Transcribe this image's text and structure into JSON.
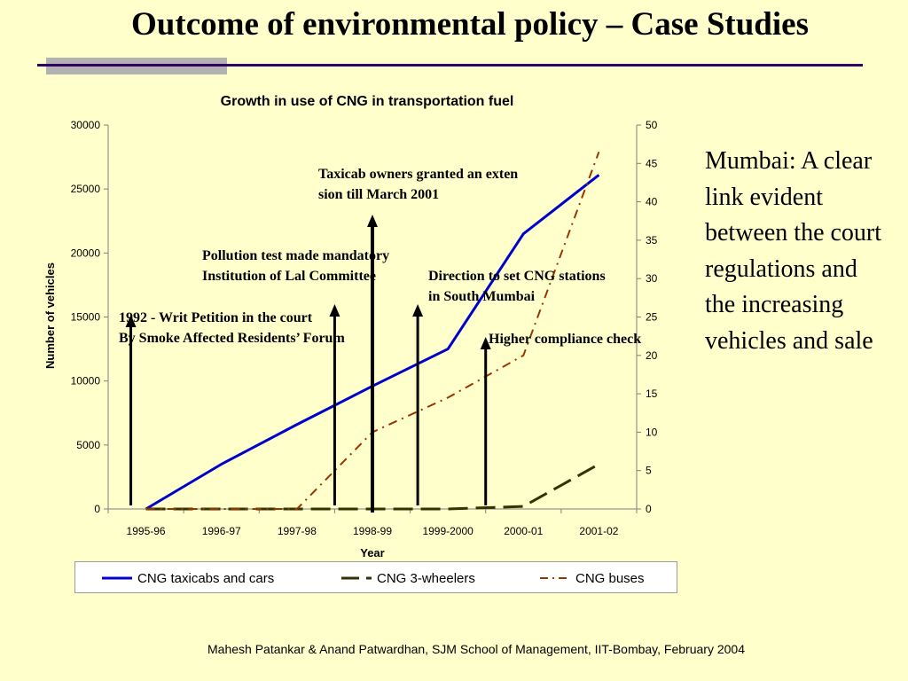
{
  "slide": {
    "title": "Outcome of environmental policy – Case Studies",
    "side_text": "Mumbai: A clear link evident between the court regulations and the increasing vehicles and sale",
    "footer": "Mahesh Patankar & Anand Patwardhan, SJM School of Management, IIT-Bombay, February 2004"
  },
  "colors": {
    "background": "#ffffcc",
    "taxicabs": "#0000cc",
    "three_wheelers": "#333300",
    "buses": "#993300",
    "title_rule": "#330066"
  },
  "chart_data": {
    "type": "line",
    "title": "Growth in use of CNG in transportation fuel",
    "xlabel": "Year",
    "ylabel": "Number of vehicles",
    "categories": [
      "1995-96",
      "1996-97",
      "1997-98",
      "1998-99",
      "1999-2000",
      "2000-01",
      "2001-02"
    ],
    "y_ticks": [
      "0",
      "5000",
      "10000",
      "15000",
      "20000",
      "25000",
      "30000"
    ],
    "ylim": [
      0,
      30000
    ],
    "y2_ticks": [
      "0",
      "5",
      "10",
      "15",
      "20",
      "25",
      "30",
      "35",
      "40",
      "45",
      "50"
    ],
    "y2lim": [
      0,
      50
    ],
    "series": [
      {
        "name": "CNG taxicabs and cars",
        "axis": "left",
        "style": "solid",
        "values": [
          0,
          3500,
          6600,
          9600,
          12500,
          21500,
          26100
        ]
      },
      {
        "name": "CNG 3-wheelers",
        "axis": "left",
        "style": "dashed",
        "values": [
          0,
          0,
          0,
          0,
          0,
          200,
          3500
        ]
      },
      {
        "name": "CNG buses",
        "axis": "right",
        "style": "dashdot",
        "values": [
          0,
          0,
          0,
          10,
          14.5,
          20,
          46.5
        ]
      }
    ],
    "annotations": [
      {
        "lines": [
          "1992 - Writ Petition in the court",
          "By Smoke Affected Residents’ Forum"
        ],
        "arrow_x": 0.3
      },
      {
        "lines": [
          "Pollution test made mandatory",
          "Institution of Lal Committee"
        ],
        "arrow_x": 3.0
      },
      {
        "lines": [
          "Taxicab owners granted an exten",
          "sion till March 2001"
        ],
        "arrow_x": 3.5
      },
      {
        "lines": [
          "Direction to set CNG stations",
          "in South Mumbai"
        ],
        "arrow_x": 4.1
      },
      {
        "lines": [
          "Higher compliance check"
        ],
        "arrow_x": 5.0
      }
    ],
    "legend_position": "bottom",
    "grid": false
  }
}
